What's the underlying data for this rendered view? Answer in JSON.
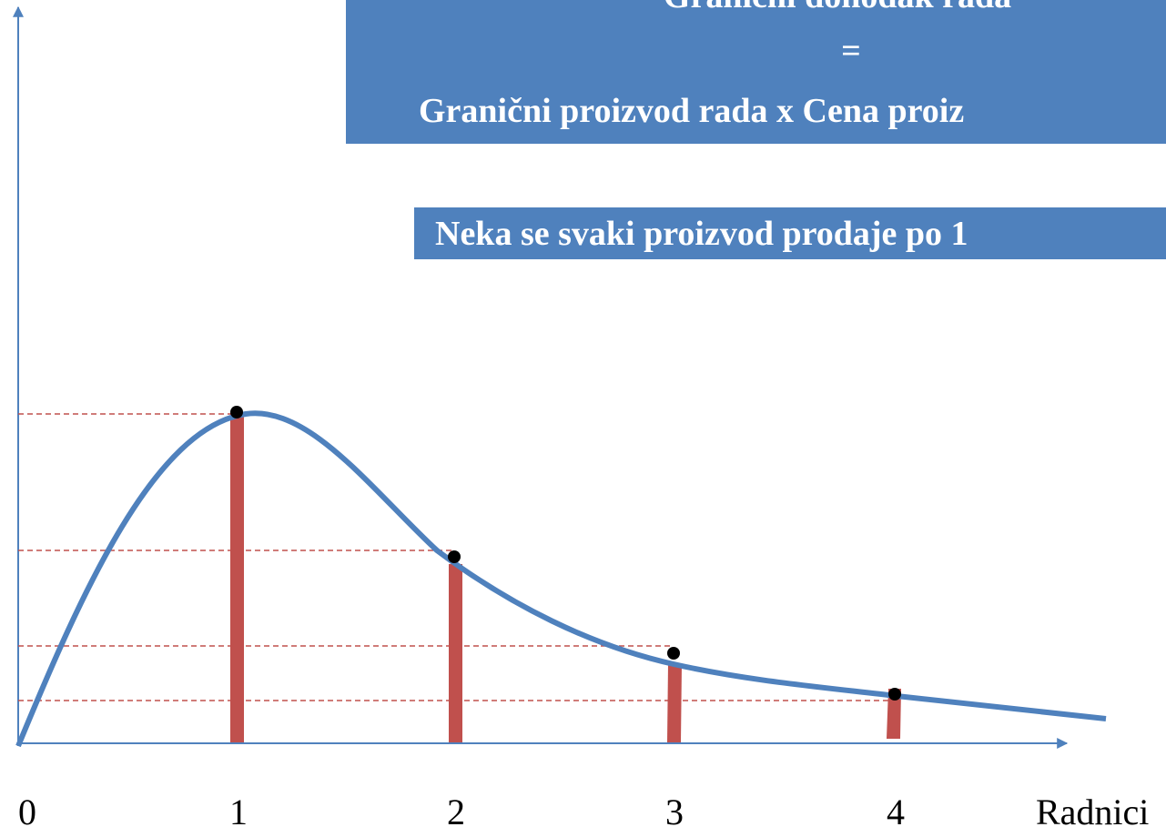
{
  "header": {
    "lines": [
      "Granični dohodak rada",
      "=",
      "Granični proizvod rada x Cena proiz"
    ],
    "note": "Neka se svaki proizvod prodaje po 1"
  },
  "axis": {
    "labels": [
      "0",
      "1",
      "2",
      "3",
      "4"
    ],
    "x_title": "Radnici"
  }
}
